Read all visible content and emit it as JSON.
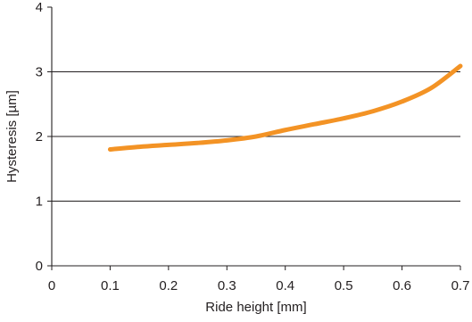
{
  "chart_data": {
    "type": "line",
    "title": "",
    "xlabel": "Ride height [mm]",
    "ylabel": "Hysteresis [µm]",
    "xlim": [
      0,
      0.7
    ],
    "ylim": [
      0,
      4
    ],
    "x_ticks": [
      "0",
      "0.1",
      "0.2",
      "0.3",
      "0.4",
      "0.5",
      "0.6",
      "0.7"
    ],
    "y_ticks": [
      "0",
      "1",
      "2",
      "3",
      "4"
    ],
    "grid": "horizontal",
    "series": [
      {
        "color": "#f39325",
        "x": [
          0.1,
          0.15,
          0.2,
          0.25,
          0.3,
          0.35,
          0.4,
          0.45,
          0.5,
          0.55,
          0.6,
          0.65,
          0.7
        ],
        "y": [
          1.8,
          1.84,
          1.87,
          1.9,
          1.94,
          2.0,
          2.1,
          2.19,
          2.28,
          2.39,
          2.54,
          2.75,
          3.09
        ]
      }
    ]
  }
}
